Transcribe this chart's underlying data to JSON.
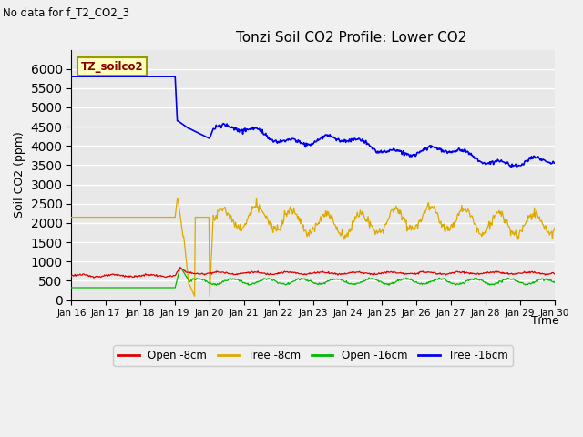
{
  "title": "Tonzi Soil CO2 Profile: Lower CO2",
  "subtitle": "No data for f_T2_CO2_3",
  "ylabel": "Soil CO2 (ppm)",
  "xlabel": "Time",
  "annotation": "TZ_soilco2",
  "ylim": [
    0,
    6500
  ],
  "yticks": [
    0,
    500,
    1000,
    1500,
    2000,
    2500,
    3000,
    3500,
    4000,
    4500,
    5000,
    5500,
    6000
  ],
  "x_labels": [
    "Jan 16",
    "Jan 17",
    "Jan 18",
    "Jan 19",
    "Jan 20",
    "Jan 21",
    "Jan 22",
    "Jan 23",
    "Jan 24",
    "Jan 25",
    "Jan 26",
    "Jan 27",
    "Jan 28",
    "Jan 29",
    "Jan 30"
  ],
  "colors": {
    "open_8cm": "#dd0000",
    "tree_8cm": "#ddaa00",
    "open_16cm": "#00bb00",
    "tree_16cm": "#0000ee"
  },
  "legend": [
    {
      "label": "Open -8cm",
      "color": "#dd0000"
    },
    {
      "label": "Tree -8cm",
      "color": "#ddaa00"
    },
    {
      "label": "Open -16cm",
      "color": "#00bb00"
    },
    {
      "label": "Tree -16cm",
      "color": "#0000ee"
    }
  ],
  "bg_color": "#e8e8e8",
  "grid_color": "#ffffff",
  "fig_bg": "#f0f0f0"
}
